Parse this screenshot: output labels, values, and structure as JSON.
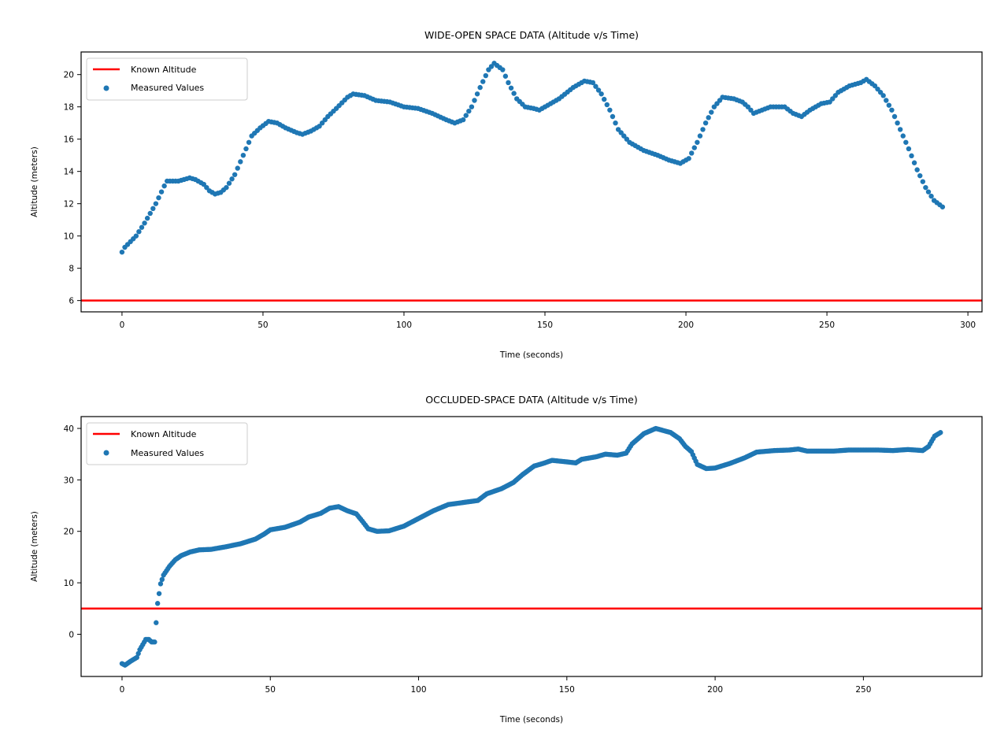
{
  "chart_data": [
    {
      "type": "scatter",
      "title": "WIDE-OPEN SPACE DATA (Altitude v/s Time)",
      "xlabel": "Time (seconds)",
      "ylabel": "Altitude (meters)",
      "xlim": [
        -14.5,
        305
      ],
      "ylim": [
        5.3,
        21.4
      ],
      "xticks": [
        0,
        50,
        100,
        150,
        200,
        250,
        300
      ],
      "yticks": [
        6,
        8,
        10,
        12,
        14,
        16,
        18,
        20
      ],
      "grid": false,
      "legend_position": "top-left",
      "reference_line": {
        "name": "Known Altitude",
        "y": 6,
        "color": "#ff0000"
      },
      "series": [
        {
          "name": "Measured Values",
          "color": "#1f77b4",
          "x_start": 0,
          "x_end": 291,
          "x_step": 1,
          "keypoints": [
            [
              0,
              9.0
            ],
            [
              1,
              9.3
            ],
            [
              5,
              10.0
            ],
            [
              8,
              10.8
            ],
            [
              12,
              12.0
            ],
            [
              15,
              13.1
            ],
            [
              16,
              13.4
            ],
            [
              20,
              13.4
            ],
            [
              24,
              13.6
            ],
            [
              26,
              13.5
            ],
            [
              29,
              13.2
            ],
            [
              31,
              12.8
            ],
            [
              33,
              12.6
            ],
            [
              35,
              12.7
            ],
            [
              37,
              13.0
            ],
            [
              40,
              13.8
            ],
            [
              43,
              15.0
            ],
            [
              46,
              16.2
            ],
            [
              49,
              16.7
            ],
            [
              52,
              17.1
            ],
            [
              55,
              17.0
            ],
            [
              58,
              16.7
            ],
            [
              62,
              16.4
            ],
            [
              64,
              16.3
            ],
            [
              67,
              16.5
            ],
            [
              70,
              16.8
            ],
            [
              73,
              17.4
            ],
            [
              76,
              17.9
            ],
            [
              80,
              18.6
            ],
            [
              82,
              18.8
            ],
            [
              86,
              18.7
            ],
            [
              90,
              18.4
            ],
            [
              95,
              18.3
            ],
            [
              100,
              18.0
            ],
            [
              105,
              17.9
            ],
            [
              110,
              17.6
            ],
            [
              115,
              17.2
            ],
            [
              118,
              17.0
            ],
            [
              121,
              17.2
            ],
            [
              124,
              18.0
            ],
            [
              127,
              19.2
            ],
            [
              130,
              20.3
            ],
            [
              132,
              20.7
            ],
            [
              135,
              20.3
            ],
            [
              137,
              19.5
            ],
            [
              140,
              18.5
            ],
            [
              143,
              18.0
            ],
            [
              146,
              17.9
            ],
            [
              148,
              17.8
            ],
            [
              150,
              18.0
            ],
            [
              155,
              18.5
            ],
            [
              160,
              19.2
            ],
            [
              164,
              19.6
            ],
            [
              167,
              19.5
            ],
            [
              170,
              18.8
            ],
            [
              173,
              17.8
            ],
            [
              176,
              16.6
            ],
            [
              180,
              15.8
            ],
            [
              185,
              15.3
            ],
            [
              190,
              15.0
            ],
            [
              194,
              14.7
            ],
            [
              198,
              14.5
            ],
            [
              201,
              14.8
            ],
            [
              204,
              15.8
            ],
            [
              207,
              17.0
            ],
            [
              210,
              18.0
            ],
            [
              213,
              18.6
            ],
            [
              217,
              18.5
            ],
            [
              220,
              18.3
            ],
            [
              222,
              18.0
            ],
            [
              224,
              17.6
            ],
            [
              227,
              17.8
            ],
            [
              230,
              18.0
            ],
            [
              235,
              18.0
            ],
            [
              238,
              17.6
            ],
            [
              241,
              17.4
            ],
            [
              244,
              17.8
            ],
            [
              248,
              18.2
            ],
            [
              251,
              18.3
            ],
            [
              254,
              18.9
            ],
            [
              258,
              19.3
            ],
            [
              262,
              19.5
            ],
            [
              264,
              19.7
            ],
            [
              267,
              19.3
            ],
            [
              270,
              18.7
            ],
            [
              273,
              17.8
            ],
            [
              276,
              16.6
            ],
            [
              279,
              15.4
            ],
            [
              282,
              14.1
            ],
            [
              285,
              13.0
            ],
            [
              288,
              12.2
            ],
            [
              291,
              11.8
            ]
          ]
        }
      ]
    },
    {
      "type": "scatter",
      "title": "OCCLUDED-SPACE DATA (Altitude v/s Time)",
      "xlabel": "Time (seconds)",
      "ylabel": "Altitude (meters)",
      "xlim": [
        -13.8,
        290
      ],
      "ylim": [
        -8.2,
        42.3
      ],
      "xticks": [
        0,
        50,
        100,
        150,
        200,
        250
      ],
      "yticks": [
        0,
        10,
        20,
        30,
        40
      ],
      "grid": false,
      "legend_position": "top-left",
      "reference_line": {
        "name": "Known Altitude",
        "y": 5,
        "color": "#ff0000"
      },
      "series": [
        {
          "name": "Measured Values",
          "color": "#1f77b4",
          "x_start": 0,
          "x_end": 276,
          "x_step": 0.5,
          "keypoints": [
            [
              0,
              -5.7
            ],
            [
              1,
              -6.0
            ],
            [
              3,
              -5.2
            ],
            [
              5,
              -4.5
            ],
            [
              6,
              -3.0
            ],
            [
              7,
              -2.0
            ],
            [
              8,
              -1.0
            ],
            [
              9,
              -1.0
            ],
            [
              10,
              -1.5
            ],
            [
              11,
              -1.5
            ],
            [
              12,
              6.0
            ],
            [
              13,
              9.8
            ],
            [
              14,
              11.5
            ],
            [
              16,
              13.2
            ],
            [
              18,
              14.5
            ],
            [
              20,
              15.3
            ],
            [
              23,
              16.0
            ],
            [
              26,
              16.4
            ],
            [
              30,
              16.5
            ],
            [
              35,
              17.0
            ],
            [
              40,
              17.6
            ],
            [
              45,
              18.5
            ],
            [
              48,
              19.5
            ],
            [
              50,
              20.3
            ],
            [
              55,
              20.8
            ],
            [
              60,
              21.8
            ],
            [
              63,
              22.8
            ],
            [
              67,
              23.5
            ],
            [
              70,
              24.5
            ],
            [
              73,
              24.8
            ],
            [
              76,
              24.0
            ],
            [
              79,
              23.4
            ],
            [
              81,
              22.0
            ],
            [
              83,
              20.5
            ],
            [
              86,
              20.0
            ],
            [
              90,
              20.1
            ],
            [
              95,
              21.0
            ],
            [
              100,
              22.5
            ],
            [
              105,
              24.0
            ],
            [
              110,
              25.2
            ],
            [
              115,
              25.6
            ],
            [
              120,
              26.0
            ],
            [
              123,
              27.3
            ],
            [
              128,
              28.3
            ],
            [
              132,
              29.5
            ],
            [
              135,
              31.0
            ],
            [
              139,
              32.7
            ],
            [
              142,
              33.2
            ],
            [
              145,
              33.8
            ],
            [
              150,
              33.5
            ],
            [
              153,
              33.3
            ],
            [
              155,
              34.0
            ],
            [
              160,
              34.5
            ],
            [
              163,
              35.0
            ],
            [
              167,
              34.8
            ],
            [
              170,
              35.2
            ],
            [
              172,
              37.0
            ],
            [
              176,
              39.0
            ],
            [
              180,
              40.0
            ],
            [
              185,
              39.2
            ],
            [
              188,
              38.0
            ],
            [
              190,
              36.5
            ],
            [
              192,
              35.5
            ],
            [
              194,
              33.0
            ],
            [
              197,
              32.2
            ],
            [
              200,
              32.3
            ],
            [
              205,
              33.2
            ],
            [
              210,
              34.3
            ],
            [
              214,
              35.4
            ],
            [
              220,
              35.7
            ],
            [
              225,
              35.8
            ],
            [
              228,
              36.0
            ],
            [
              231,
              35.6
            ],
            [
              240,
              35.6
            ],
            [
              245,
              35.8
            ],
            [
              255,
              35.8
            ],
            [
              260,
              35.7
            ],
            [
              265,
              35.9
            ],
            [
              270,
              35.7
            ],
            [
              272,
              36.5
            ],
            [
              274,
              38.5
            ],
            [
              276,
              39.2
            ]
          ]
        }
      ]
    }
  ]
}
